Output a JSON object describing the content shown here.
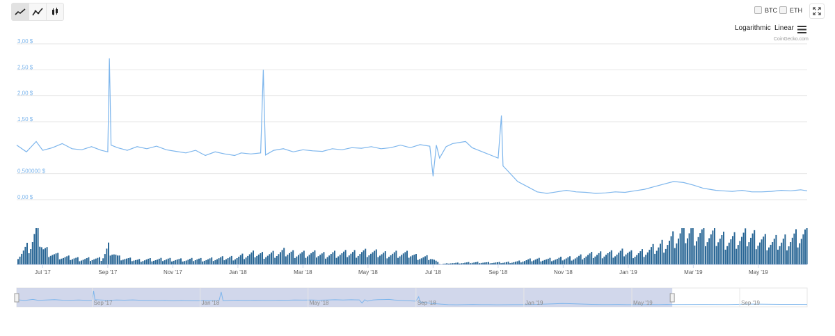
{
  "toolbar": {
    "buttons": [
      {
        "name": "line-chart",
        "active": true
      },
      {
        "name": "line-chart-alt",
        "active": false
      },
      {
        "name": "candlestick-chart",
        "active": false
      }
    ]
  },
  "compare": {
    "btc_label": "BTC",
    "eth_label": "ETH"
  },
  "scale": {
    "log_label": "Logarithmic",
    "linear_label": "Linear"
  },
  "credit": "CoinGecko.com",
  "colors": {
    "price_line": "#7cb5ec",
    "volume": "#2a6796",
    "axis_label": "#7cb5ec",
    "navigator_mask": "#c5cde6",
    "grid": "#e6e6e6"
  },
  "chart_data": {
    "type": "line",
    "grid": true,
    "legend": "none",
    "y_ticks": [
      "3,00 $",
      "2,50 $",
      "2,00 $",
      "1,50 $",
      "0,500000 $",
      "0,00 $"
    ],
    "y_tick_values": [
      3.0,
      2.5,
      2.0,
      1.5,
      0.5,
      0.0
    ],
    "ylim": [
      0,
      3.0
    ],
    "x_ticks": [
      "Jul '17",
      "Sep '17",
      "Nov '17",
      "Jan '18",
      "Mar '18",
      "May '18",
      "Jul '18",
      "Sep '18",
      "Nov '18",
      "Jan '19",
      "Mar '19",
      "May '19"
    ],
    "x_tick_months": [
      18,
      20,
      22,
      24,
      26,
      28,
      30,
      32,
      34,
      36,
      38,
      40
    ],
    "xlim_months": [
      17.2,
      41.5
    ],
    "series": [
      {
        "key": "price",
        "x": [
          17.2,
          17.5,
          17.8,
          18.0,
          18.3,
          18.6,
          18.9,
          19.2,
          19.5,
          19.8,
          20.0,
          20.05,
          20.1,
          20.3,
          20.6,
          20.9,
          21.2,
          21.5,
          21.8,
          22.1,
          22.4,
          22.7,
          23.0,
          23.3,
          23.6,
          23.9,
          24.1,
          24.4,
          24.7,
          24.78,
          24.85,
          25.1,
          25.4,
          25.7,
          26.0,
          26.3,
          26.6,
          26.9,
          27.2,
          27.5,
          27.8,
          28.1,
          28.4,
          28.7,
          29.0,
          29.3,
          29.6,
          29.9,
          30.0,
          30.1,
          30.2,
          30.4,
          30.6,
          30.8,
          31.0,
          31.2,
          31.4,
          31.6,
          31.8,
          32.0,
          32.1,
          32.15,
          32.3,
          32.6,
          32.9,
          33.2,
          33.5,
          33.8,
          34.1,
          34.4,
          34.7,
          35.0,
          35.3,
          35.6,
          35.9,
          36.2,
          36.5,
          36.8,
          37.1,
          37.4,
          37.7,
          38.0,
          38.3,
          38.5,
          38.7,
          38.9,
          39.2,
          39.5,
          39.8,
          40.1,
          40.4,
          40.7,
          41.0,
          41.3,
          41.5
        ],
        "y": [
          1.05,
          0.92,
          1.12,
          0.95,
          1.0,
          1.08,
          0.98,
          0.96,
          1.02,
          0.95,
          0.92,
          2.72,
          1.05,
          1.0,
          0.95,
          1.02,
          0.98,
          1.03,
          0.96,
          0.93,
          0.9,
          0.95,
          0.85,
          0.92,
          0.88,
          0.85,
          0.9,
          0.88,
          0.9,
          2.5,
          0.86,
          0.95,
          0.98,
          0.92,
          0.96,
          0.94,
          0.93,
          0.98,
          0.96,
          1.0,
          0.99,
          1.02,
          0.98,
          1.0,
          1.05,
          1.0,
          1.06,
          1.03,
          0.45,
          1.05,
          0.8,
          1.02,
          1.08,
          1.1,
          1.12,
          1.0,
          0.95,
          0.9,
          0.85,
          0.8,
          1.62,
          0.65,
          0.55,
          0.35,
          0.25,
          0.15,
          0.12,
          0.15,
          0.18,
          0.15,
          0.14,
          0.12,
          0.13,
          0.15,
          0.14,
          0.17,
          0.2,
          0.25,
          0.3,
          0.35,
          0.33,
          0.28,
          0.22,
          0.2,
          0.18,
          0.17,
          0.16,
          0.18,
          0.15,
          0.15,
          0.16,
          0.18,
          0.17,
          0.19,
          0.17
        ]
      },
      {
        "key": "volume",
        "x": [
          17.2,
          17.4,
          17.6,
          17.8,
          18.0,
          18.3,
          18.6,
          18.9,
          19.2,
          19.5,
          19.8,
          20.0,
          20.3,
          20.6,
          20.9,
          21.2,
          21.5,
          21.8,
          22.1,
          22.4,
          22.7,
          23.0,
          23.3,
          23.6,
          23.9,
          24.2,
          24.5,
          24.8,
          25.1,
          25.4,
          25.7,
          26.0,
          26.3,
          26.6,
          26.9,
          27.2,
          27.5,
          27.8,
          28.1,
          28.4,
          28.7,
          29.0,
          29.3,
          29.6,
          29.9,
          30.2,
          30.5,
          30.8,
          31.1,
          31.4,
          31.7,
          32.0,
          32.3,
          32.6,
          32.9,
          33.2,
          33.5,
          33.8,
          34.1,
          34.4,
          34.7,
          35.0,
          35.3,
          35.6,
          35.9,
          36.2,
          36.5,
          36.8,
          37.1,
          37.4,
          37.7,
          38.0,
          38.3,
          38.6,
          38.9,
          39.2,
          39.5,
          39.8,
          40.1,
          40.4,
          40.7,
          41.0,
          41.3,
          41.5
        ],
        "y": [
          0.25,
          0.4,
          0.55,
          1.0,
          0.45,
          0.3,
          0.2,
          0.18,
          0.15,
          0.16,
          0.15,
          0.5,
          0.2,
          0.15,
          0.12,
          0.14,
          0.13,
          0.15,
          0.14,
          0.12,
          0.15,
          0.14,
          0.16,
          0.18,
          0.2,
          0.25,
          0.3,
          0.28,
          0.3,
          0.35,
          0.32,
          0.3,
          0.3,
          0.28,
          0.3,
          0.3,
          0.32,
          0.35,
          0.33,
          0.3,
          0.3,
          0.3,
          0.28,
          0.2,
          0.2,
          0.0,
          0.04,
          0.04,
          0.05,
          0.06,
          0.05,
          0.05,
          0.06,
          0.08,
          0.12,
          0.15,
          0.14,
          0.15,
          0.18,
          0.2,
          0.25,
          0.28,
          0.32,
          0.3,
          0.35,
          0.3,
          0.35,
          0.45,
          0.6,
          0.75,
          0.9,
          0.95,
          0.85,
          0.8,
          0.75,
          0.7,
          0.75,
          0.8,
          0.7,
          0.6,
          0.65,
          0.75,
          0.8,
          0.85
        ]
      }
    ],
    "navigator": {
      "x_ticks": [
        "Sep '17",
        "Jan '18",
        "May '18",
        "Sep '18",
        "Jan '19",
        "May '19",
        "Sep '19"
      ],
      "x_tick_months": [
        20,
        24,
        28,
        32,
        36,
        40,
        44
      ],
      "xlim_months": [
        17.2,
        46.5
      ],
      "selected_range_months": [
        17.2,
        41.5
      ]
    }
  }
}
